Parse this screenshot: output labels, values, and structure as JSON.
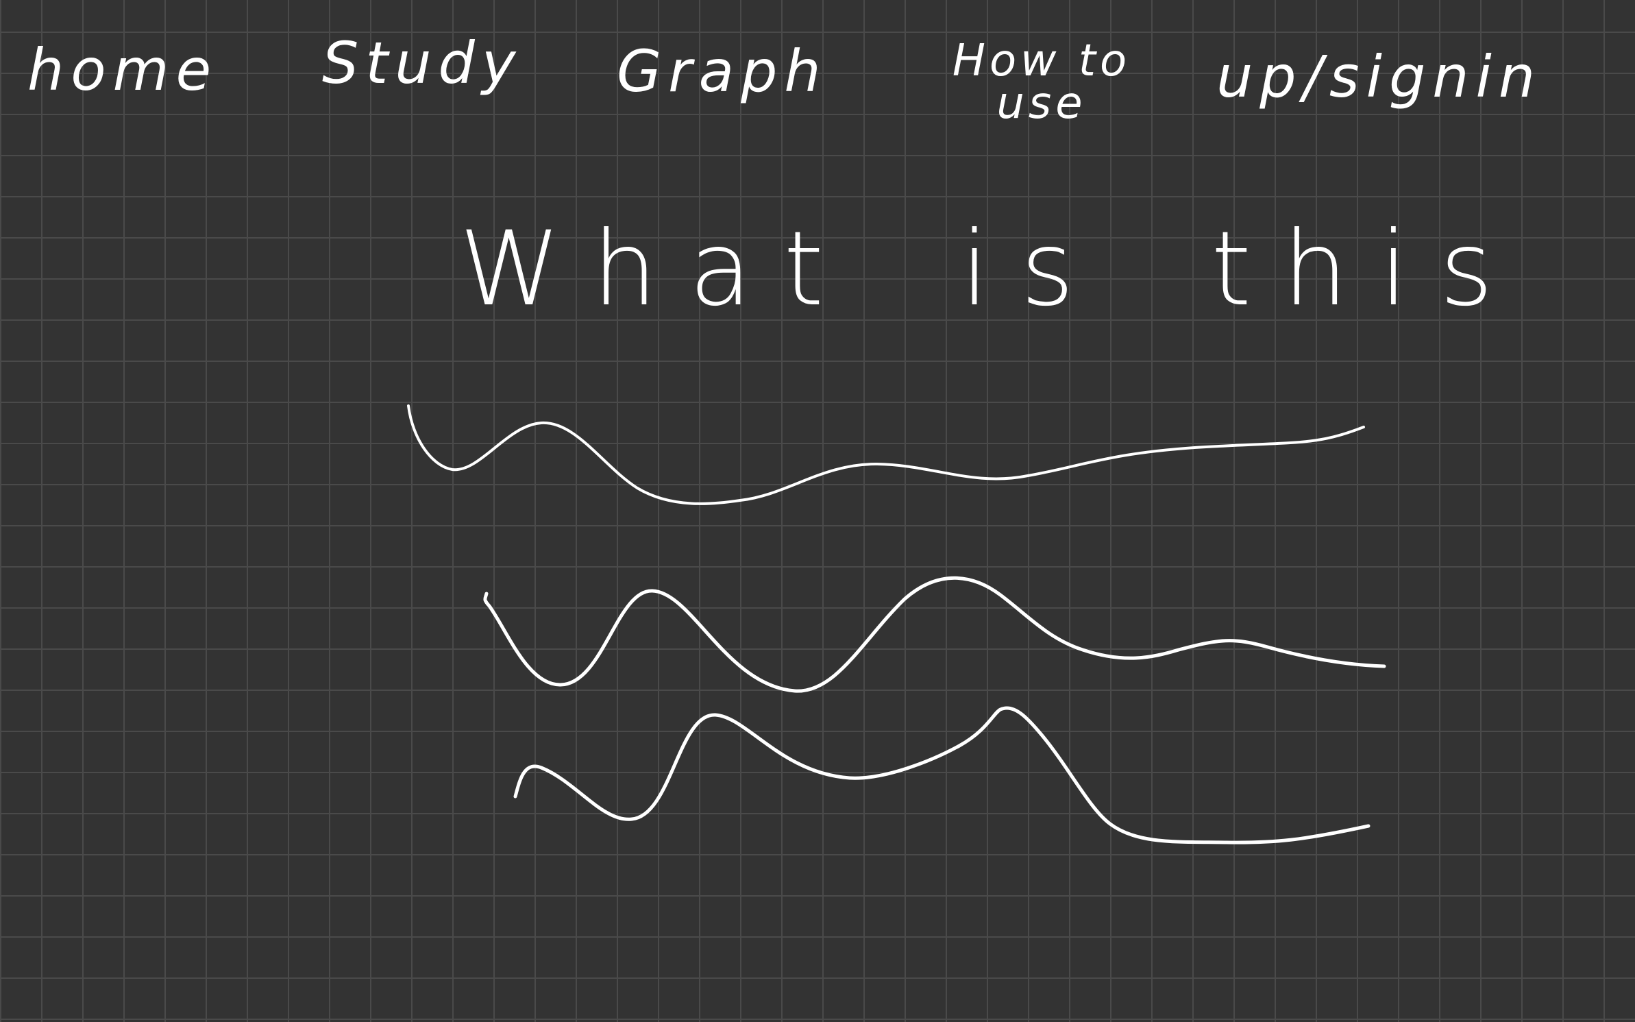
{
  "nav": {
    "home": "home",
    "study": "Study",
    "graph": "Graph",
    "how_to_line1": "How to",
    "how_to_line2": "use",
    "signin": "up/signin"
  },
  "headline": "What is this",
  "colors": {
    "background": "#333333",
    "grid": "#4a4a4a",
    "ink": "#ffffff"
  }
}
